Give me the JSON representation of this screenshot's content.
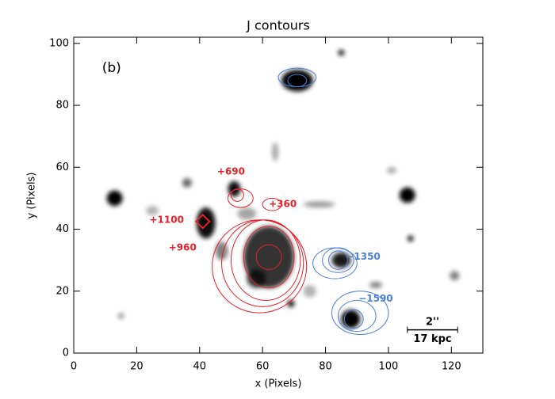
{
  "chart_data": {
    "type": "image",
    "title": "J contours",
    "x_label": "x (Pixels)",
    "y_label": "y (Pixels)",
    "xlim": [
      0,
      130
    ],
    "ylim": [
      0,
      102
    ],
    "xticks": [
      0,
      20,
      40,
      60,
      80,
      100,
      120
    ],
    "yticks": [
      0,
      20,
      40,
      60,
      80,
      100
    ],
    "panel_label": "(b)",
    "annotations": [
      {
        "text": "+690",
        "color": "#e8202a"
      },
      {
        "text": "+360",
        "color": "#e8202a"
      },
      {
        "text": "+1100",
        "color": "#e8202a"
      },
      {
        "text": "+960",
        "color": "#e8202a"
      },
      {
        "text": "−1350",
        "color": "#4a7fd4"
      },
      {
        "text": "−1590",
        "color": "#4a7fd4"
      }
    ],
    "scale_bar": {
      "top": "2''",
      "bottom": "17 kpc"
    }
  }
}
